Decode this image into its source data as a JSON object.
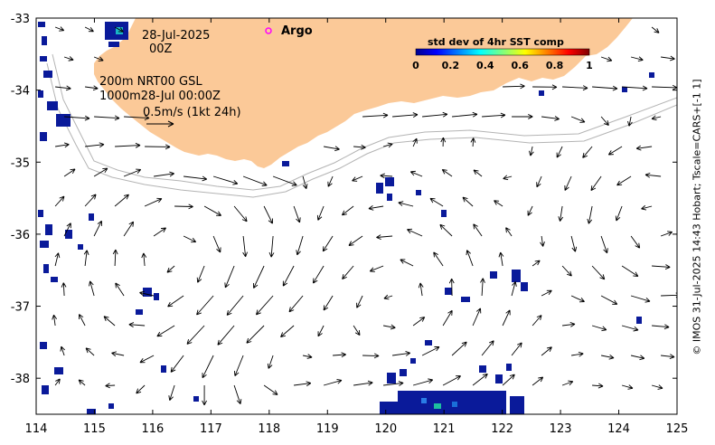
{
  "map": {
    "date_line": "28-Jul-2025",
    "time_line": "00Z",
    "argo_label": "Argo",
    "depth_line1": "200m  NRT00 GSL",
    "depth_line2": "1000m28-Jul 00:00Z",
    "scale_label": "0.5m/s (1kt 24h)",
    "colorbar": {
      "title": "std dev of 4hr SST comp",
      "tick_labels": [
        "0",
        "0.2",
        "0.4",
        "0.6",
        "0.8",
        "1"
      ],
      "range": [
        0,
        1
      ]
    },
    "credit": "© IMOS 31-Jul-2025 14:43 Hobart; Tscale=CARS+[-1 1]",
    "x_ticks": [
      "114",
      "115",
      "116",
      "117",
      "118",
      "119",
      "120",
      "121",
      "122",
      "123",
      "124",
      "125"
    ],
    "y_ticks": [
      "-33",
      "-34",
      "-35",
      "-36",
      "-37",
      "-38"
    ],
    "lon_range": [
      114,
      125
    ],
    "lat_range": [
      -38.5,
      -33
    ],
    "colors": {
      "land": "#fbc998",
      "ocean": "#ffffff",
      "argo_marker": "#ff00ff",
      "isobath": "#b4b4b4",
      "sst_patch": "#0a1a9a"
    }
  }
}
